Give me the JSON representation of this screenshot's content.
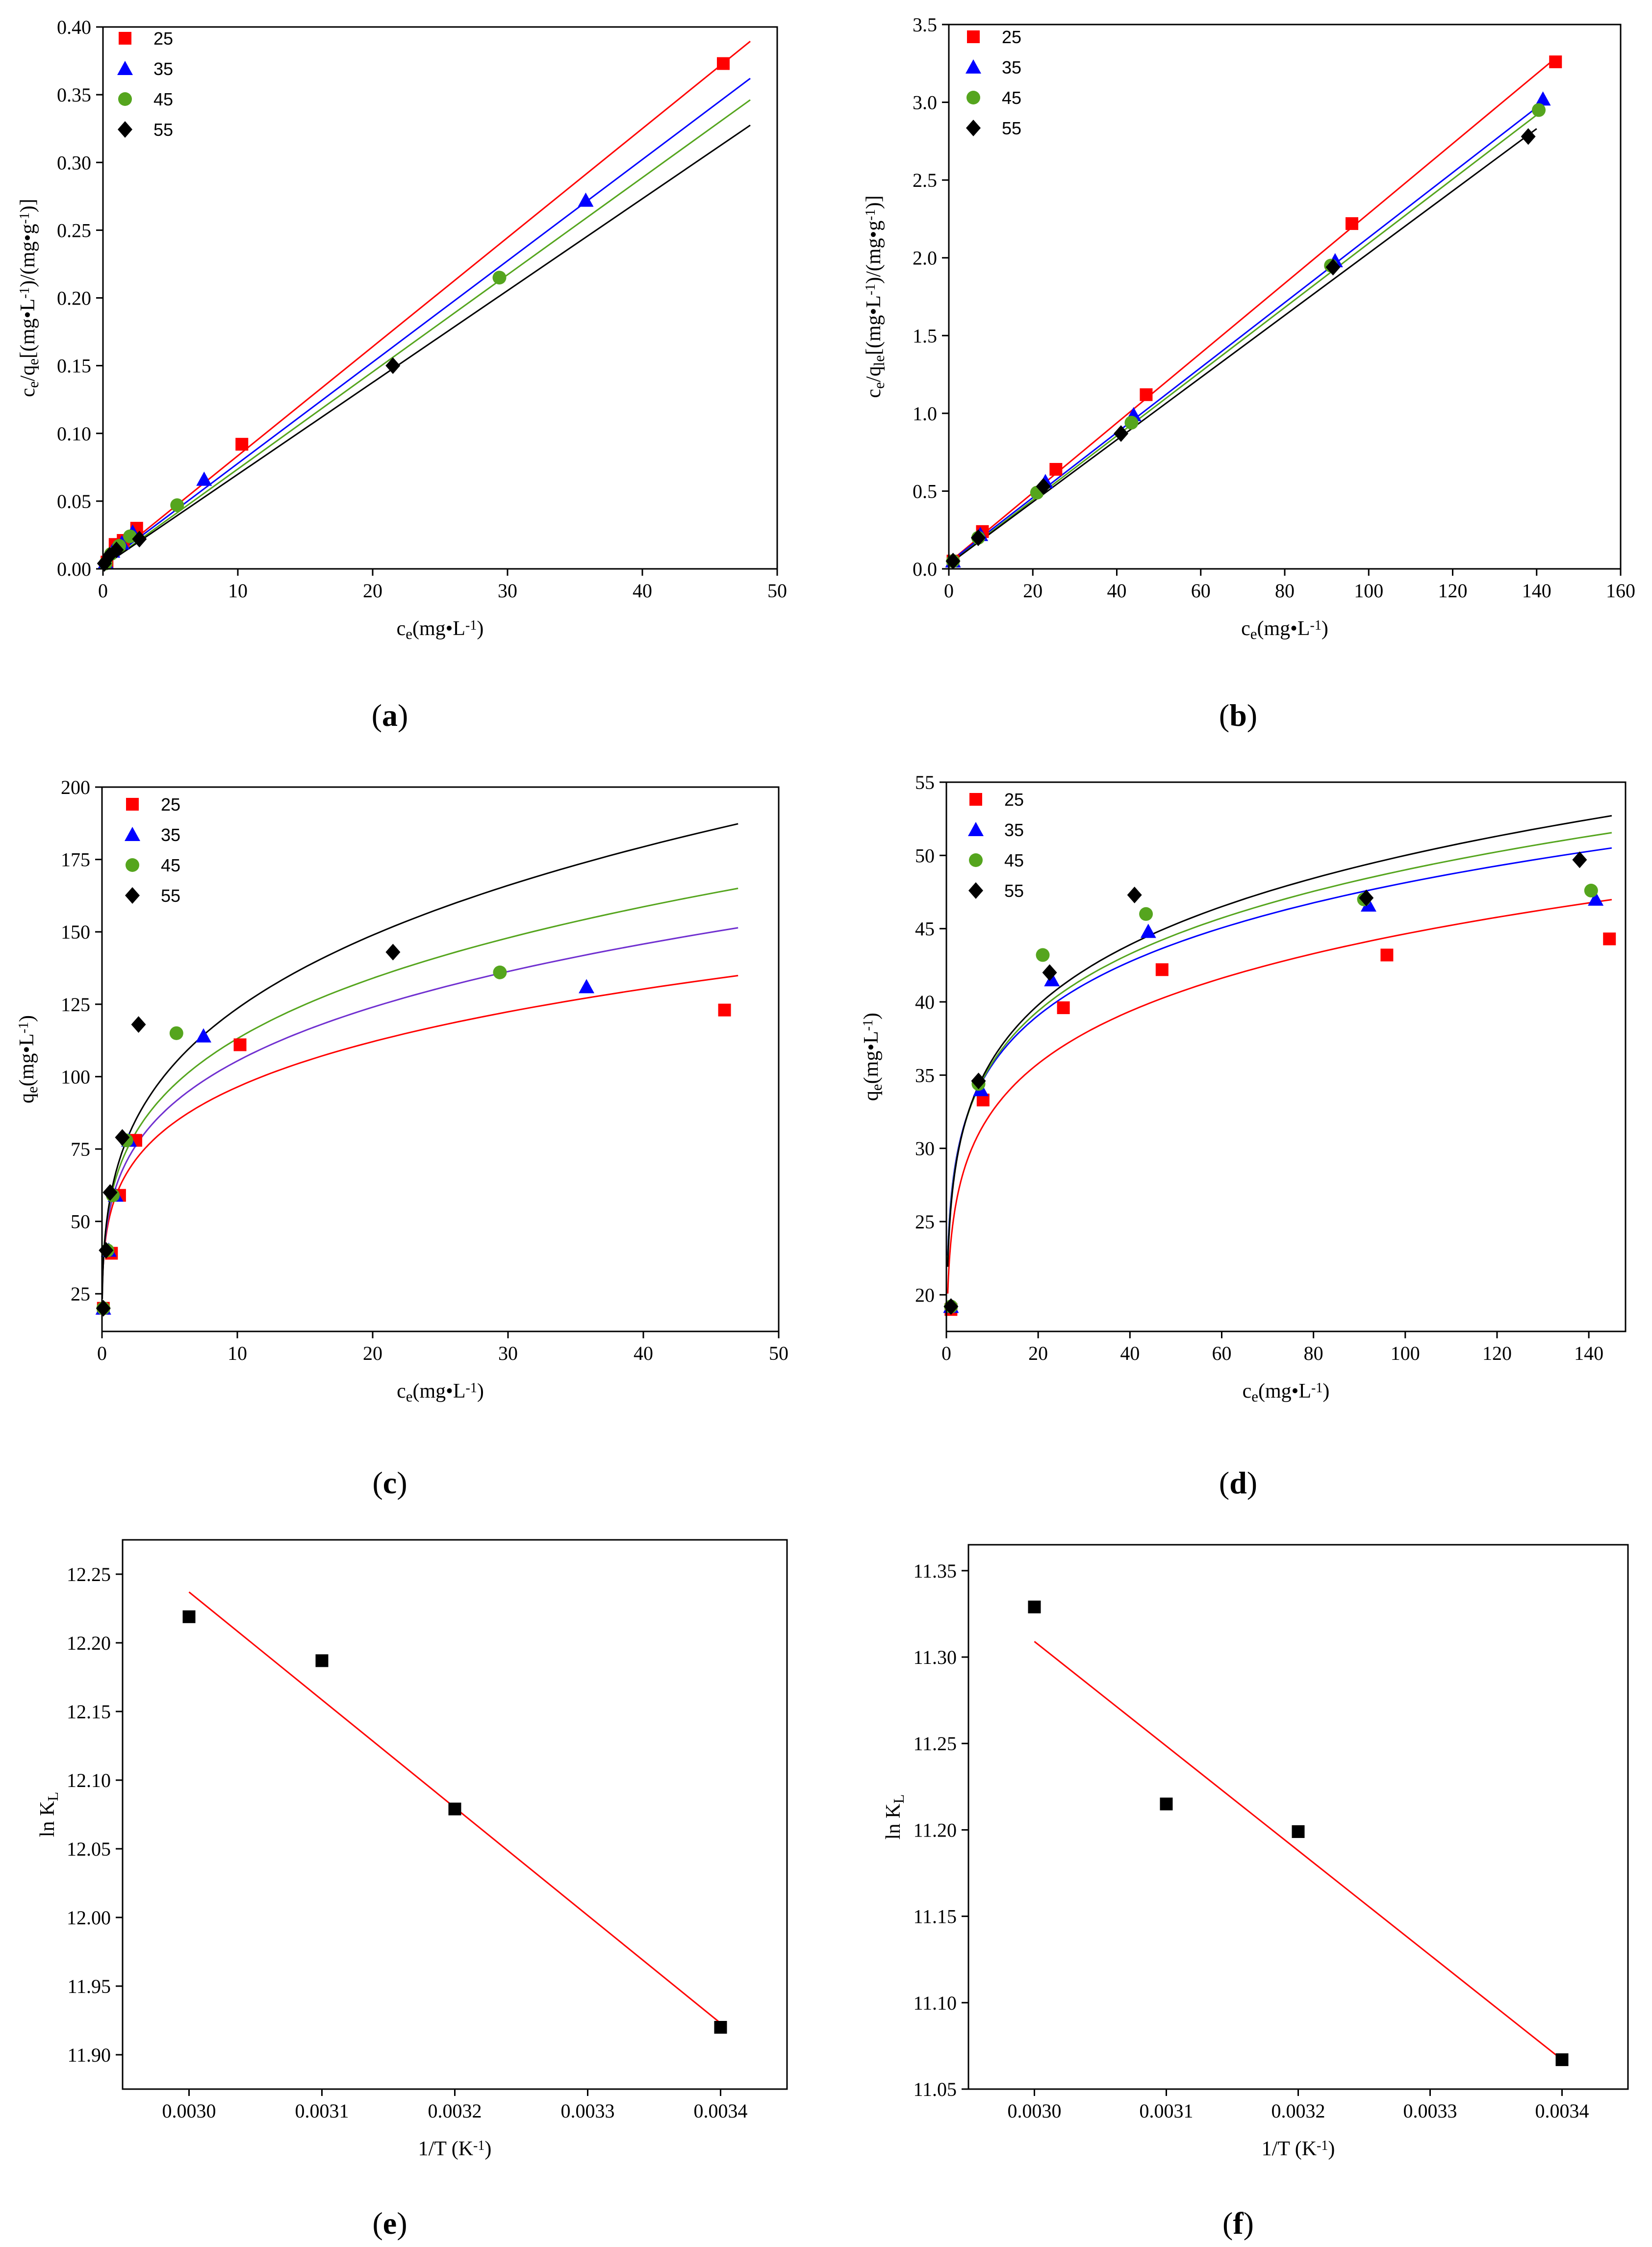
{
  "colors": {
    "s25": "#ff0000",
    "s35": "#0000ff",
    "s45": "#55a51e",
    "s55": "#000000",
    "fit55_freundlich": "#000000",
    "fit35_freundlich": "#7030d0"
  },
  "chart_data": [
    {
      "type": "scatter",
      "id": "a",
      "caption_letter": "a",
      "xlabel_parts": [
        "c",
        "e",
        "(mg•L",
        "-1",
        ")"
      ],
      "ylabel_parts": [
        "c",
        "e",
        "/q",
        "e",
        "[(mg•L",
        "-1",
        ")/(mg•g",
        "-1",
        ")]"
      ],
      "xlim": [
        0,
        50
      ],
      "ylim": [
        0,
        0.4
      ],
      "xticks": [
        0,
        10,
        20,
        30,
        40,
        50
      ],
      "xtick_labels": [
        "0",
        "10",
        "20",
        "30",
        "40",
        "50"
      ],
      "yticks": [
        0,
        0.05,
        0.1,
        0.15,
        0.2,
        0.25,
        0.3,
        0.35,
        0.4
      ],
      "ytick_labels": [
        "0.00",
        "0.05",
        "0.10",
        "0.15",
        "0.20",
        "0.25",
        "0.30",
        "0.35",
        "0.40"
      ],
      "legend_position": "top-left",
      "series": [
        {
          "name": "25",
          "marker": "square",
          "color_key": "s25",
          "x": [
            0.3,
            0.9,
            1.5,
            2.5,
            10.3,
            46.0
          ],
          "y": [
            0.005,
            0.018,
            0.021,
            0.03,
            0.092,
            0.373
          ]
        },
        {
          "name": "35",
          "marker": "triangle",
          "color_key": "s35",
          "x": [
            0.2,
            0.7,
            1.4,
            2.2,
            7.5,
            35.8
          ],
          "y": [
            0.005,
            0.013,
            0.019,
            0.027,
            0.066,
            0.272
          ]
        },
        {
          "name": "45",
          "marker": "circle",
          "color_key": "s45",
          "x": [
            0.2,
            0.6,
            1.2,
            2.0,
            5.5,
            29.4
          ],
          "y": [
            0.004,
            0.011,
            0.017,
            0.024,
            0.047,
            0.215
          ]
        },
        {
          "name": "55",
          "marker": "diamond",
          "color_key": "s55",
          "x": [
            0.1,
            0.5,
            1.0,
            2.7,
            21.5
          ],
          "y": [
            0.004,
            0.01,
            0.014,
            0.022,
            0.15
          ]
        }
      ],
      "fits": [
        {
          "kind": "linear",
          "color_key": "s25",
          "x0": 0,
          "x1": 48,
          "slope": 0.00805,
          "intercept": 0.003
        },
        {
          "kind": "linear",
          "color_key": "s35",
          "x0": 0,
          "x1": 48,
          "slope": 0.00748,
          "intercept": 0.003
        },
        {
          "kind": "linear",
          "color_key": "s45",
          "x0": 0,
          "x1": 48,
          "slope": 0.00717,
          "intercept": 0.002
        },
        {
          "kind": "linear",
          "color_key": "s55",
          "x0": 0,
          "x1": 48,
          "slope": 0.00678,
          "intercept": 0.002
        }
      ]
    },
    {
      "type": "scatter",
      "id": "b",
      "caption_letter": "b",
      "xlabel_parts": [
        "c",
        "e",
        "(mg•L",
        "-1",
        ")"
      ],
      "ylabel_parts": [
        "c",
        "e",
        "/q",
        "le",
        "[(mg•L",
        "-1",
        ")/(mg•g",
        "-1",
        ")]"
      ],
      "xlim": [
        0,
        160
      ],
      "ylim": [
        0,
        3.5
      ],
      "xticks": [
        0,
        20,
        40,
        60,
        80,
        100,
        120,
        140,
        160
      ],
      "xtick_labels": [
        "0",
        "20",
        "40",
        "60",
        "80",
        "100",
        "120",
        "140",
        "160"
      ],
      "yticks": [
        0,
        0.5,
        1.0,
        1.5,
        2.0,
        2.5,
        3.0,
        3.5
      ],
      "ytick_labels": [
        "0.0",
        "0.5",
        "1.0",
        "1.5",
        "2.0",
        "2.5",
        "3.0",
        "3.5"
      ],
      "legend_position": "top-left",
      "series": [
        {
          "name": "25",
          "marker": "square",
          "color_key": "s25",
          "x": [
            1.0,
            8.0,
            25.5,
            47.0,
            96.0,
            144.5
          ],
          "y": [
            0.05,
            0.24,
            0.64,
            1.12,
            2.22,
            3.26
          ]
        },
        {
          "name": "35",
          "marker": "triangle",
          "color_key": "s35",
          "x": [
            1.0,
            7.5,
            23.0,
            44.0,
            92.0,
            141.5
          ],
          "y": [
            0.05,
            0.22,
            0.56,
            0.99,
            1.98,
            3.02
          ]
        },
        {
          "name": "45",
          "marker": "circle",
          "color_key": "s45",
          "x": [
            1.0,
            7.0,
            21.0,
            43.5,
            91.0,
            140.5
          ],
          "y": [
            0.05,
            0.2,
            0.49,
            0.94,
            1.95,
            2.95
          ]
        },
        {
          "name": "55",
          "marker": "diamond",
          "color_key": "s55",
          "x": [
            1.0,
            7.0,
            22.5,
            41.0,
            91.5,
            138.0
          ],
          "y": [
            0.05,
            0.2,
            0.53,
            0.87,
            1.94,
            2.78
          ]
        }
      ],
      "fits": [
        {
          "kind": "linear",
          "color_key": "s25",
          "x0": 0,
          "x1": 145,
          "slope": 0.02245,
          "intercept": 0.04
        },
        {
          "kind": "linear",
          "color_key": "s35",
          "x0": 0,
          "x1": 142,
          "slope": 0.0209,
          "intercept": 0.04
        },
        {
          "kind": "linear",
          "color_key": "s45",
          "x0": 0,
          "x1": 142,
          "slope": 0.02063,
          "intercept": 0.03
        },
        {
          "kind": "linear",
          "color_key": "s55",
          "x0": 0,
          "x1": 140,
          "slope": 0.02,
          "intercept": 0.03
        }
      ]
    },
    {
      "type": "scatter",
      "id": "c",
      "caption_letter": "c",
      "xlabel_parts": [
        "c",
        "e",
        "(mg•L",
        "-1",
        ")"
      ],
      "ylabel_parts": [
        "q",
        "e",
        "(mg•L",
        "-1",
        ")"
      ],
      "xlim": [
        0,
        50
      ],
      "ylim": [
        12,
        200
      ],
      "xticks": [
        0,
        10,
        20,
        30,
        40,
        50
      ],
      "xtick_labels": [
        "0",
        "10",
        "20",
        "30",
        "40",
        "50"
      ],
      "yticks": [
        25,
        50,
        75,
        100,
        125,
        150,
        175,
        200
      ],
      "ytick_labels": [
        "25",
        "50",
        "75",
        "100",
        "125",
        "150",
        "175",
        "200"
      ],
      "legend_position": "top-left",
      "series": [
        {
          "name": "25",
          "marker": "square",
          "color_key": "s25",
          "x": [
            0.1,
            0.7,
            1.3,
            2.5,
            10.2,
            46.0
          ],
          "y": [
            20,
            39,
            59,
            78,
            111,
            123
          ]
        },
        {
          "name": "35",
          "marker": "triangle",
          "color_key": "s35",
          "x": [
            0.1,
            0.5,
            1.0,
            2.0,
            7.5,
            35.8
          ],
          "y": [
            20,
            40,
            59,
            78,
            114,
            131
          ]
        },
        {
          "name": "45",
          "marker": "circle",
          "color_key": "s45",
          "x": [
            0.1,
            0.4,
            0.8,
            1.8,
            5.5,
            29.4
          ],
          "y": [
            20,
            40,
            59,
            78,
            115,
            136
          ]
        },
        {
          "name": "55",
          "marker": "diamond",
          "color_key": "s55",
          "x": [
            0.1,
            0.3,
            0.6,
            1.5,
            2.7,
            21.5
          ],
          "y": [
            20,
            40,
            60,
            79,
            118,
            143
          ]
        }
      ],
      "fits": [
        {
          "kind": "power",
          "color_key": "s25",
          "x0": 0.02,
          "x1": 47,
          "k": 58.5,
          "n": 0.217
        },
        {
          "kind": "power",
          "color_key": "fit35_freundlich",
          "x0": 0.02,
          "x1": 47,
          "k": 61.5,
          "n": 0.234
        },
        {
          "kind": "power",
          "color_key": "s45",
          "x0": 0.02,
          "x1": 47,
          "k": 64.5,
          "n": 0.244
        },
        {
          "kind": "power",
          "color_key": "fit55_freundlich",
          "x0": 0.02,
          "x1": 47,
          "k": 66.5,
          "n": 0.269
        }
      ]
    },
    {
      "type": "scatter",
      "id": "d",
      "caption_letter": "d",
      "xlabel_parts": [
        "c",
        "e",
        "(mg•L",
        "-1",
        ")"
      ],
      "ylabel_parts": [
        "q",
        "e",
        "(mg•L",
        "-1",
        ")"
      ],
      "xlim": [
        0,
        148
      ],
      "ylim": [
        17.5,
        55
      ],
      "xticks": [
        0,
        20,
        40,
        60,
        80,
        100,
        120,
        140
      ],
      "xtick_labels": [
        "0",
        "20",
        "40",
        "60",
        "80",
        "100",
        "120",
        "140"
      ],
      "yticks": [
        20,
        25,
        30,
        35,
        40,
        45,
        50,
        55
      ],
      "ytick_labels": [
        "20",
        "25",
        "30",
        "35",
        "40",
        "45",
        "50",
        "55"
      ],
      "legend_position": "top-left",
      "series": [
        {
          "name": "25",
          "marker": "square",
          "color_key": "s25",
          "x": [
            1.0,
            8.0,
            25.5,
            47.0,
            96.0,
            144.5
          ],
          "y": [
            19.0,
            33.3,
            39.6,
            42.2,
            43.2,
            44.3
          ]
        },
        {
          "name": "35",
          "marker": "triangle",
          "color_key": "s35",
          "x": [
            1.0,
            7.5,
            23.0,
            44.0,
            92.0,
            141.5
          ],
          "y": [
            19.2,
            34.0,
            41.5,
            44.8,
            46.6,
            47.0
          ]
        },
        {
          "name": "45",
          "marker": "circle",
          "color_key": "s45",
          "x": [
            1.0,
            7.0,
            21.0,
            43.5,
            91.0,
            140.5
          ],
          "y": [
            19.2,
            34.4,
            43.2,
            46.0,
            47.0,
            47.6
          ]
        },
        {
          "name": "55",
          "marker": "diamond",
          "color_key": "s55",
          "x": [
            1.0,
            7.0,
            22.5,
            41.0,
            91.5,
            138.0
          ],
          "y": [
            19.2,
            34.6,
            42.0,
            47.3,
            47.1,
            49.7
          ]
        }
      ],
      "fits": [
        {
          "kind": "power",
          "color_key": "s25",
          "x0": 0.3,
          "x1": 145,
          "k": 23.7,
          "n": 0.1375
        },
        {
          "kind": "power",
          "color_key": "s35",
          "x0": 0.3,
          "x1": 145,
          "k": 26.5,
          "n": 0.1296
        },
        {
          "kind": "power",
          "color_key": "s45",
          "x0": 0.3,
          "x1": 145,
          "k": 26.2,
          "n": 0.136
        },
        {
          "kind": "power",
          "color_key": "s55",
          "x0": 0.3,
          "x1": 145,
          "k": 26.0,
          "n": 0.142
        }
      ]
    },
    {
      "type": "scatter",
      "id": "e",
      "caption_letter": "e",
      "xlabel_parts": [
        "1/T (K",
        "-1",
        ")"
      ],
      "ylabel_parts": [
        "ln K",
        "L"
      ],
      "xlim": [
        0.00295,
        0.00345
      ],
      "ylim": [
        11.875,
        12.275
      ],
      "xticks": [
        0.003,
        0.0031,
        0.0032,
        0.0033,
        0.0034
      ],
      "xtick_labels": [
        "0.0030",
        "0.0031",
        "0.0032",
        "0.0033",
        "0.0034"
      ],
      "yticks": [
        11.9,
        11.95,
        12.0,
        12.05,
        12.1,
        12.15,
        12.2,
        12.25
      ],
      "ytick_labels": [
        "11.90",
        "11.95",
        "12.00",
        "12.05",
        "12.10",
        "12.15",
        "12.20",
        "12.25"
      ],
      "series": [
        {
          "name": "ln KL",
          "marker": "square",
          "color_key": "s55",
          "x": [
            0.003,
            0.0031,
            0.0032,
            0.0034
          ],
          "y": [
            12.219,
            12.187,
            12.079,
            11.92
          ]
        }
      ],
      "fits": [
        {
          "kind": "linear",
          "color_key": "s25",
          "x0": 0.003,
          "x1": 0.0034,
          "y0": 12.237,
          "y1": 11.923
        }
      ]
    },
    {
      "type": "scatter",
      "id": "f",
      "caption_letter": "f",
      "xlabel_parts": [
        "1/T (K",
        "-1",
        ")"
      ],
      "ylabel_parts": [
        "ln K",
        "L"
      ],
      "xlim": [
        0.00295,
        0.00345
      ],
      "ylim": [
        11.05,
        11.365
      ],
      "xticks": [
        0.003,
        0.0031,
        0.0032,
        0.0033,
        0.0034
      ],
      "xtick_labels": [
        "0.0030",
        "0.0031",
        "0.0032",
        "0.0033",
        "0.0034"
      ],
      "yticks": [
        11.05,
        11.1,
        11.15,
        11.2,
        11.25,
        11.3,
        11.35
      ],
      "ytick_labels": [
        "11.05",
        "11.10",
        "11.15",
        "11.20",
        "11.25",
        "11.30",
        "11.35"
      ],
      "series": [
        {
          "name": "ln KL",
          "marker": "square",
          "color_key": "s55",
          "x": [
            0.003,
            0.0031,
            0.0032,
            0.0034
          ],
          "y": [
            11.329,
            11.215,
            11.199,
            11.067
          ]
        }
      ],
      "fits": [
        {
          "kind": "linear",
          "color_key": "s25",
          "x0": 0.003,
          "x1": 0.0034,
          "y0": 11.309,
          "y1": 11.067
        }
      ]
    }
  ]
}
